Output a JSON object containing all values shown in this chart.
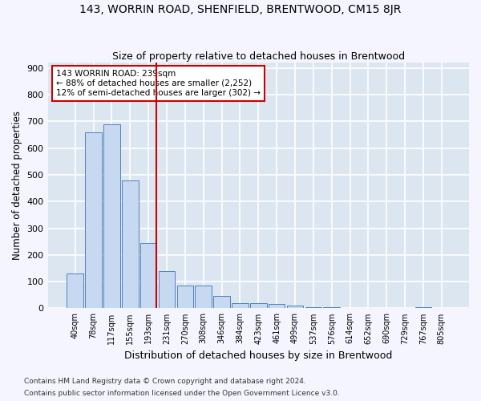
{
  "title1": "143, WORRIN ROAD, SHENFIELD, BRENTWOOD, CM15 8JR",
  "title2": "Size of property relative to detached houses in Brentwood",
  "xlabel": "Distribution of detached houses by size in Brentwood",
  "ylabel": "Number of detached properties",
  "bar_color": "#c6d9f1",
  "bar_edge_color": "#4f81bd",
  "background_color": "#dce6f1",
  "grid_color": "#ffffff",
  "annotation_line1": "143 WORRIN ROAD: 239sqm",
  "annotation_line2": "← 88% of detached houses are smaller (2,252)",
  "annotation_line3": "12% of semi-detached houses are larger (302) →",
  "vline_color": "#cc0000",
  "annotation_box_color": "#ffffff",
  "annotation_box_edge": "#cc0000",
  "footer1": "Contains HM Land Registry data © Crown copyright and database right 2024.",
  "footer2": "Contains public sector information licensed under the Open Government Licence v3.0.",
  "categories": [
    "40sqm",
    "78sqm",
    "117sqm",
    "155sqm",
    "193sqm",
    "231sqm",
    "270sqm",
    "308sqm",
    "346sqm",
    "384sqm",
    "423sqm",
    "461sqm",
    "499sqm",
    "537sqm",
    "576sqm",
    "614sqm",
    "652sqm",
    "690sqm",
    "729sqm",
    "767sqm",
    "805sqm"
  ],
  "values": [
    130,
    660,
    690,
    480,
    245,
    140,
    85,
    85,
    47,
    20,
    18,
    15,
    10,
    5,
    5,
    2,
    2,
    0,
    0,
    5,
    0
  ],
  "vline_after_index": 4,
  "ylim": [
    0,
    920
  ],
  "yticks": [
    0,
    100,
    200,
    300,
    400,
    500,
    600,
    700,
    800,
    900
  ]
}
